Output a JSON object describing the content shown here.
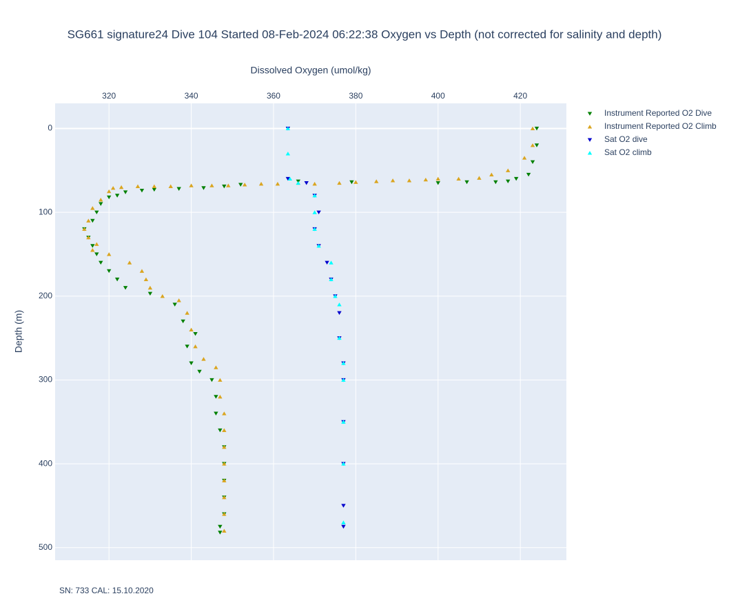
{
  "chart_data": {
    "type": "scatter",
    "title": "SG661 signature24 Dive 104 Started 08-Feb-2024 06:22:38  Oxygen vs Depth (not corrected for salinity and depth)",
    "x_label": "Dissolved Oxygen (umol/kg)",
    "y_label": "Depth (m)",
    "annotation": "SN: 733  CAL: 15.10.2020",
    "xlim": [
      306.9,
      431.2
    ],
    "ylim": [
      515,
      -30
    ],
    "xticks": [
      320,
      340,
      360,
      380,
      400,
      420
    ],
    "yticks": [
      0,
      100,
      200,
      300,
      400,
      500
    ],
    "grid": true,
    "legend": "right",
    "series": [
      {
        "name": "Instrument Reported O2 Dive",
        "color": "#008000",
        "symbol": "triangle-down",
        "x": [
          424,
          424,
          423,
          422,
          419,
          417,
          414,
          407,
          400,
          379,
          366,
          352,
          348,
          343,
          337,
          331,
          328,
          324,
          322,
          320,
          318,
          317,
          316,
          314,
          315,
          316,
          317,
          318,
          320,
          322,
          324,
          330,
          336,
          338,
          341,
          339,
          340,
          342,
          345,
          346,
          346,
          347,
          348,
          348,
          348,
          348,
          348,
          347,
          347
        ],
        "y": [
          0,
          20,
          40,
          55,
          60,
          63,
          64,
          64,
          65,
          64,
          63,
          67,
          69,
          71,
          72,
          73,
          74,
          76,
          80,
          82,
          90,
          100,
          110,
          120,
          130,
          140,
          150,
          160,
          170,
          180,
          190,
          197,
          210,
          230,
          245,
          260,
          280,
          290,
          300,
          320,
          340,
          360,
          380,
          400,
          420,
          440,
          460,
          475,
          482
        ]
      },
      {
        "name": "Instrument Reported O2 Climb",
        "color": "#daa520",
        "symbol": "triangle-up",
        "x": [
          423,
          423,
          421,
          417,
          413,
          410,
          405,
          400,
          397,
          393,
          389,
          385,
          380,
          376,
          370,
          366,
          361,
          357,
          353,
          349,
          345,
          340,
          335,
          331,
          327,
          323,
          321,
          320,
          318,
          316,
          315,
          314,
          315,
          317,
          316,
          320,
          325,
          328,
          329,
          330,
          333,
          337,
          339,
          340,
          341,
          343,
          346,
          347,
          347,
          348,
          348,
          348,
          348,
          348,
          348,
          348,
          348
        ],
        "y": [
          0,
          20,
          35,
          50,
          55,
          59,
          60,
          60,
          61,
          62,
          62,
          63,
          64,
          65,
          66,
          65,
          66,
          66,
          67,
          68,
          68,
          68,
          69,
          69,
          69,
          70,
          71,
          75,
          85,
          95,
          110,
          120,
          130,
          138,
          145,
          150,
          160,
          170,
          180,
          190,
          200,
          205,
          220,
          240,
          260,
          275,
          285,
          300,
          320,
          340,
          360,
          380,
          400,
          420,
          440,
          460,
          480
        ]
      },
      {
        "name": "Sat O2 dive",
        "color": "#0000cd",
        "symbol": "triangle-down",
        "x": [
          363.5,
          363.5,
          368,
          370,
          371,
          370,
          371,
          373,
          374,
          375,
          376,
          376,
          377,
          377,
          377,
          377,
          377,
          377
        ],
        "y": [
          0,
          60,
          65,
          80,
          100,
          120,
          140,
          160,
          180,
          200,
          220,
          250,
          280,
          300,
          350,
          400,
          450,
          475
        ]
      },
      {
        "name": "Sat O2 climb",
        "color": "#00ffff",
        "symbol": "triangle-up",
        "x": [
          363.5,
          363.5,
          364,
          366,
          370,
          370,
          370,
          371,
          374,
          374,
          375,
          376,
          376,
          377,
          377,
          377,
          377,
          377
        ],
        "y": [
          0,
          30,
          60,
          65,
          80,
          100,
          120,
          140,
          160,
          180,
          200,
          210,
          250,
          280,
          300,
          350,
          400,
          470
        ]
      }
    ]
  }
}
